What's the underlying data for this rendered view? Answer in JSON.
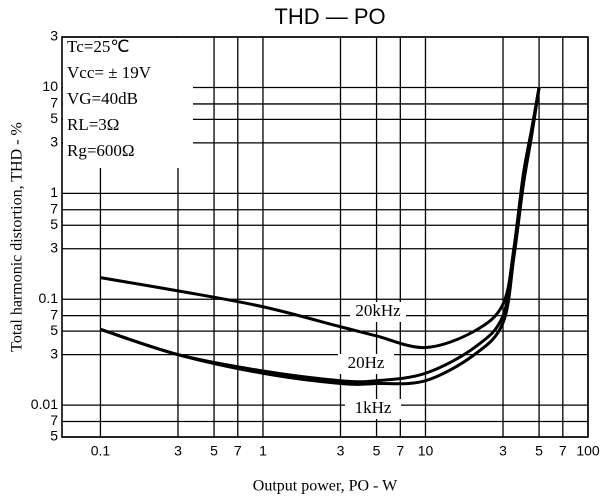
{
  "chart_data": {
    "type": "line",
    "title": "THD — PO",
    "xlabel": "Output power, PO - W",
    "ylabel": "Total harmonic distortion, THD - %",
    "annotations": [
      "Tc=25℃",
      "Vcc= ± 19V",
      "VG=40dB",
      "RL=3Ω",
      "Rg=600Ω"
    ],
    "log_x": true,
    "log_y": true,
    "grid": true,
    "xlim": [
      0.058,
      100
    ],
    "ylim": [
      0.005,
      30
    ],
    "xticks": [
      0.1,
      {
        "value": 0.3,
        "label": "3"
      },
      {
        "value": 0.5,
        "label": "5"
      },
      {
        "value": 0.7,
        "label": "7"
      },
      1,
      3,
      5,
      7,
      10,
      {
        "value": 30,
        "label": "3"
      },
      {
        "value": 50,
        "label": "5"
      },
      {
        "value": 70,
        "label": "7"
      },
      100
    ],
    "yticks": [
      {
        "value": 30,
        "label": "3"
      },
      10,
      7,
      5,
      3,
      1,
      {
        "value": 0.7,
        "label": "7"
      },
      {
        "value": 0.5,
        "label": "5"
      },
      {
        "value": 0.3,
        "label": "3"
      },
      0.1,
      {
        "value": 0.07,
        "label": "7"
      },
      {
        "value": 0.05,
        "label": "5"
      },
      {
        "value": 0.03,
        "label": "3"
      },
      0.01,
      {
        "value": 0.007,
        "label": "7"
      },
      {
        "value": 0.005,
        "label": "5"
      }
    ],
    "x": [
      0.1,
      0.3,
      1,
      3,
      5,
      10,
      20,
      30,
      35,
      40,
      45,
      50
    ],
    "series": [
      {
        "name": "20kHz",
        "color": "#000000",
        "values": [
          0.16,
          0.12,
          0.085,
          0.055,
          0.045,
          0.035,
          0.05,
          0.09,
          0.3,
          1.5,
          4,
          10
        ]
      },
      {
        "name": "20Hz",
        "color": "#000000",
        "values": [
          0.052,
          0.03,
          0.021,
          0.017,
          0.017,
          0.02,
          0.035,
          0.07,
          0.3,
          1.5,
          4,
          10
        ]
      },
      {
        "name": "1kHz",
        "color": "#000000",
        "values": [
          0.052,
          0.03,
          0.02,
          0.016,
          0.016,
          0.017,
          0.03,
          0.06,
          0.25,
          1.2,
          3.5,
          10
        ]
      }
    ]
  }
}
